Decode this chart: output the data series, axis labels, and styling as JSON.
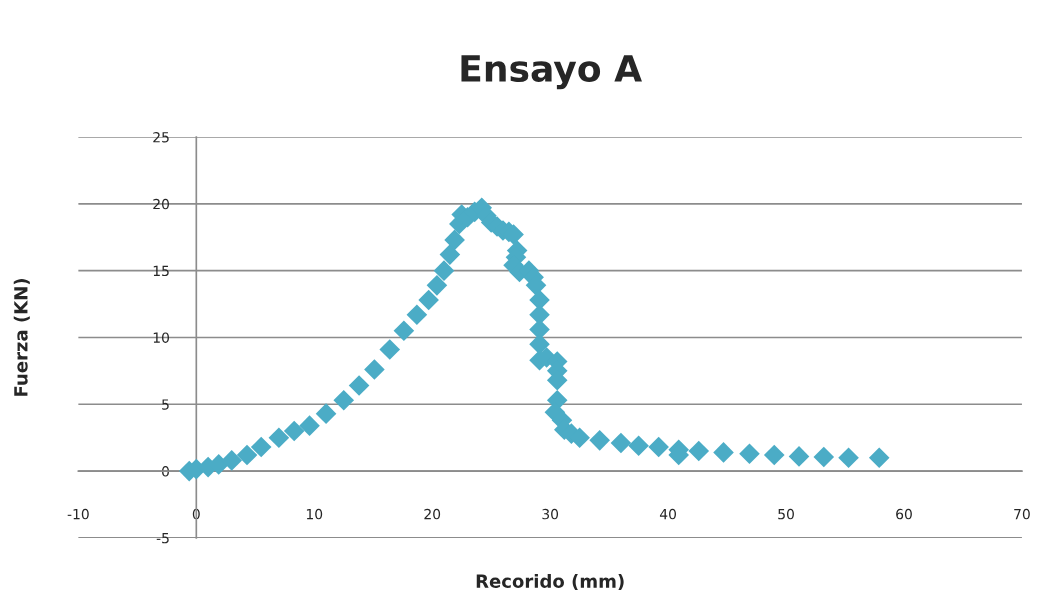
{
  "chart_data": {
    "type": "scatter",
    "title": "Ensayo A",
    "xlabel": "Recorido (mm)",
    "ylabel": "Fuerza (KN)",
    "xlim": [
      -10,
      70
    ],
    "ylim": [
      -5,
      25
    ],
    "xticks": [
      -10,
      0,
      10,
      20,
      30,
      40,
      50,
      60,
      70
    ],
    "yticks": [
      -5,
      0,
      5,
      10,
      15,
      20,
      25
    ],
    "grid": "y",
    "marker": "diamond",
    "legend": false,
    "series": [
      {
        "color": "#4bacc6",
        "x": [
          -0.6,
          0,
          1,
          1.9,
          3,
          4.3,
          5.5,
          7,
          8.3,
          9.6,
          11,
          12.5,
          13.8,
          15.1,
          16.4,
          17.6,
          18.7,
          19.7,
          20.4,
          21,
          21.5,
          21.9,
          22.3,
          22.5,
          23,
          23.6,
          24.2,
          24.6,
          25,
          25.5,
          26,
          26.5,
          26.9,
          27.2,
          27.1,
          26.9,
          27.4,
          28.2,
          28.6,
          28.8,
          29.1,
          29.1,
          29.1,
          29.1,
          29.1,
          29.7,
          30.6,
          30.6,
          30.6,
          30.6,
          30.4,
          31,
          31.2,
          31.8,
          32.5,
          34.2,
          36,
          37.5,
          39.2,
          40.9,
          40.9,
          42.6,
          44.7,
          46.9,
          49,
          51.1,
          53.2,
          55.3,
          57.9
        ],
        "values": [
          0,
          0.15,
          0.3,
          0.5,
          0.8,
          1.2,
          1.8,
          2.5,
          3.0,
          3.4,
          4.3,
          5.3,
          6.4,
          7.6,
          9.1,
          10.5,
          11.7,
          12.8,
          13.9,
          15,
          16.2,
          17.3,
          18.5,
          19.2,
          19.0,
          19.4,
          19.7,
          19.1,
          18.6,
          18.3,
          18,
          17.9,
          17.7,
          16.5,
          16.0,
          15.4,
          14.9,
          15,
          14.5,
          13.9,
          12.8,
          11.7,
          10.6,
          9.5,
          8.3,
          8.5,
          8.2,
          7.5,
          6.8,
          5.3,
          4.4,
          3.8,
          3.1,
          2.8,
          2.5,
          2.3,
          2.1,
          1.9,
          1.8,
          1.6,
          1.2,
          1.5,
          1.4,
          1.3,
          1.2,
          1.1,
          1.05,
          1,
          1
        ]
      }
    ]
  }
}
